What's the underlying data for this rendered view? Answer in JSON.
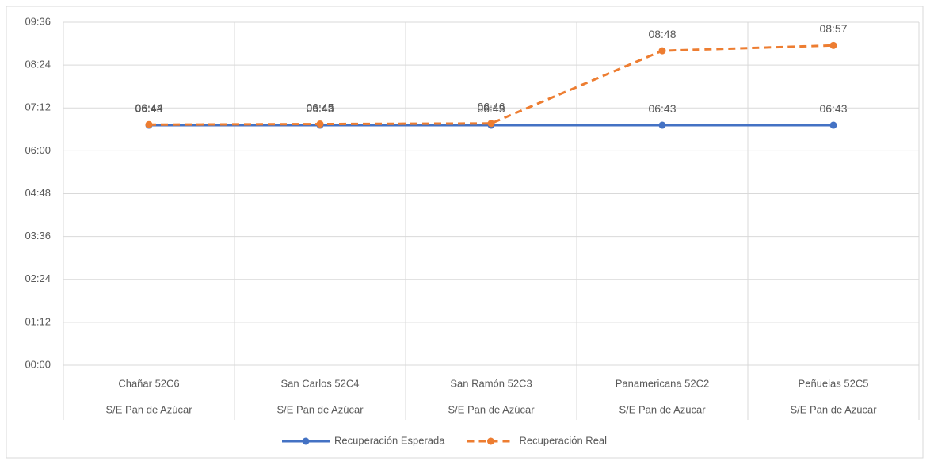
{
  "chart_data": {
    "type": "line",
    "categories": [
      [
        "Chañar 52C6",
        "S/E Pan de Azúcar"
      ],
      [
        "San Carlos 52C4",
        "S/E Pan de Azúcar"
      ],
      [
        "San Ramón 52C3",
        "S/E Pan de Azúcar"
      ],
      [
        "Panamericana 52C2",
        "S/E Pan de Azúcar"
      ],
      [
        "Peñuelas 52C5",
        "S/E Pan de Azúcar"
      ]
    ],
    "series": [
      {
        "name": "Recuperación Esperada",
        "color": "#4472c4",
        "dashed": false,
        "values": [
          403,
          403,
          403,
          403,
          403
        ],
        "value_labels": [
          "06:43",
          "06:43",
          "06:43",
          "06:43",
          "06:43"
        ]
      },
      {
        "name": "Recuperación Real",
        "color": "#ed7d31",
        "dashed": true,
        "values": [
          404,
          405,
          406,
          528,
          537
        ],
        "value_labels": [
          "06:44",
          "06:45",
          "06:46",
          "08:48",
          "08:57"
        ]
      }
    ],
    "ylim": [
      0,
      576
    ],
    "yticks": [
      {
        "value": 0,
        "label": "00:00"
      },
      {
        "value": 72,
        "label": "01:12"
      },
      {
        "value": 144,
        "label": "02:24"
      },
      {
        "value": 216,
        "label": "03:36"
      },
      {
        "value": 288,
        "label": "04:48"
      },
      {
        "value": 360,
        "label": "06:00"
      },
      {
        "value": 432,
        "label": "07:12"
      },
      {
        "value": 504,
        "label": "08:24"
      },
      {
        "value": 576,
        "label": "09:36"
      }
    ],
    "grid": true,
    "legend": "bottom"
  }
}
